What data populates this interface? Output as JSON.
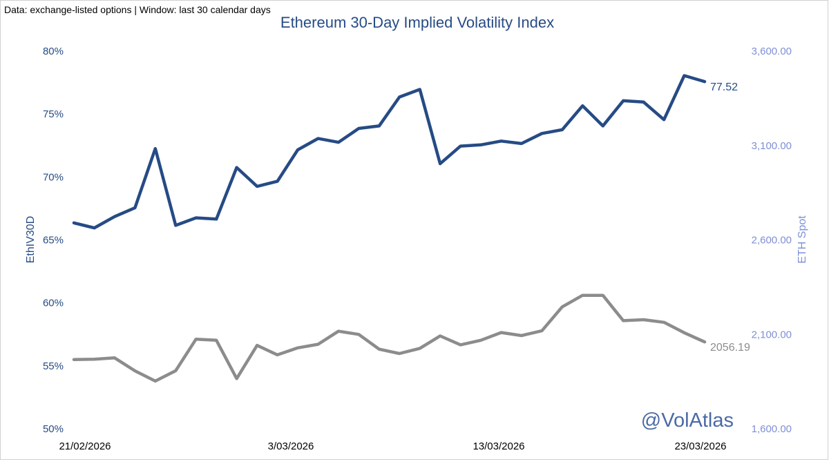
{
  "chart_data": {
    "type": "line",
    "title": "Ethereum 30-Day Implied Volatility Index",
    "note": "Data: exchange-listed options | Window: last 30 calendar days",
    "watermark": "@VolAtlas",
    "x_tick_labels": [
      "21/02/2026",
      "3/03/2026",
      "13/03/2026",
      "23/03/2026"
    ],
    "y_left": {
      "label": "EthIV30D",
      "ylim": [
        50,
        80
      ],
      "ticks": [
        50,
        55,
        60,
        65,
        70,
        75,
        80
      ],
      "tick_labels": [
        "50%",
        "55%",
        "60%",
        "65%",
        "70%",
        "75%",
        "80%"
      ]
    },
    "y_right": {
      "label": "ETH Spot",
      "ylim": [
        1600,
        3600
      ],
      "ticks": [
        1600,
        2100,
        2600,
        3100,
        3600
      ],
      "tick_labels": [
        "1,600.00",
        "2,100.00",
        "2,600.00",
        "3,100.00",
        "3,600.00"
      ]
    },
    "series": [
      {
        "name": "EthIV30D",
        "axis": "left",
        "color": "#264b85",
        "last_label": "77.52",
        "values": [
          66.3,
          65.9,
          66.8,
          67.5,
          72.2,
          66.1,
          66.7,
          66.6,
          70.7,
          69.2,
          69.6,
          72.1,
          73.0,
          72.7,
          73.8,
          74.0,
          76.3,
          76.9,
          71.0,
          72.4,
          72.5,
          72.8,
          72.6,
          73.4,
          73.7,
          75.6,
          74.0,
          76.0,
          75.9,
          74.5,
          78.0,
          77.52
        ]
      },
      {
        "name": "ETH Spot",
        "axis": "right",
        "color": "#8c8c8c",
        "last_label": "2056.19",
        "values": [
          1963,
          1965,
          1972,
          1903,
          1849,
          1904,
          2071,
          2065,
          1862,
          2038,
          1988,
          2025,
          2044,
          2113,
          2096,
          2018,
          1995,
          2022,
          2088,
          2041,
          2065,
          2106,
          2090,
          2115,
          2242,
          2303,
          2303,
          2169,
          2174,
          2160,
          2105,
          2056.19
        ]
      }
    ]
  }
}
